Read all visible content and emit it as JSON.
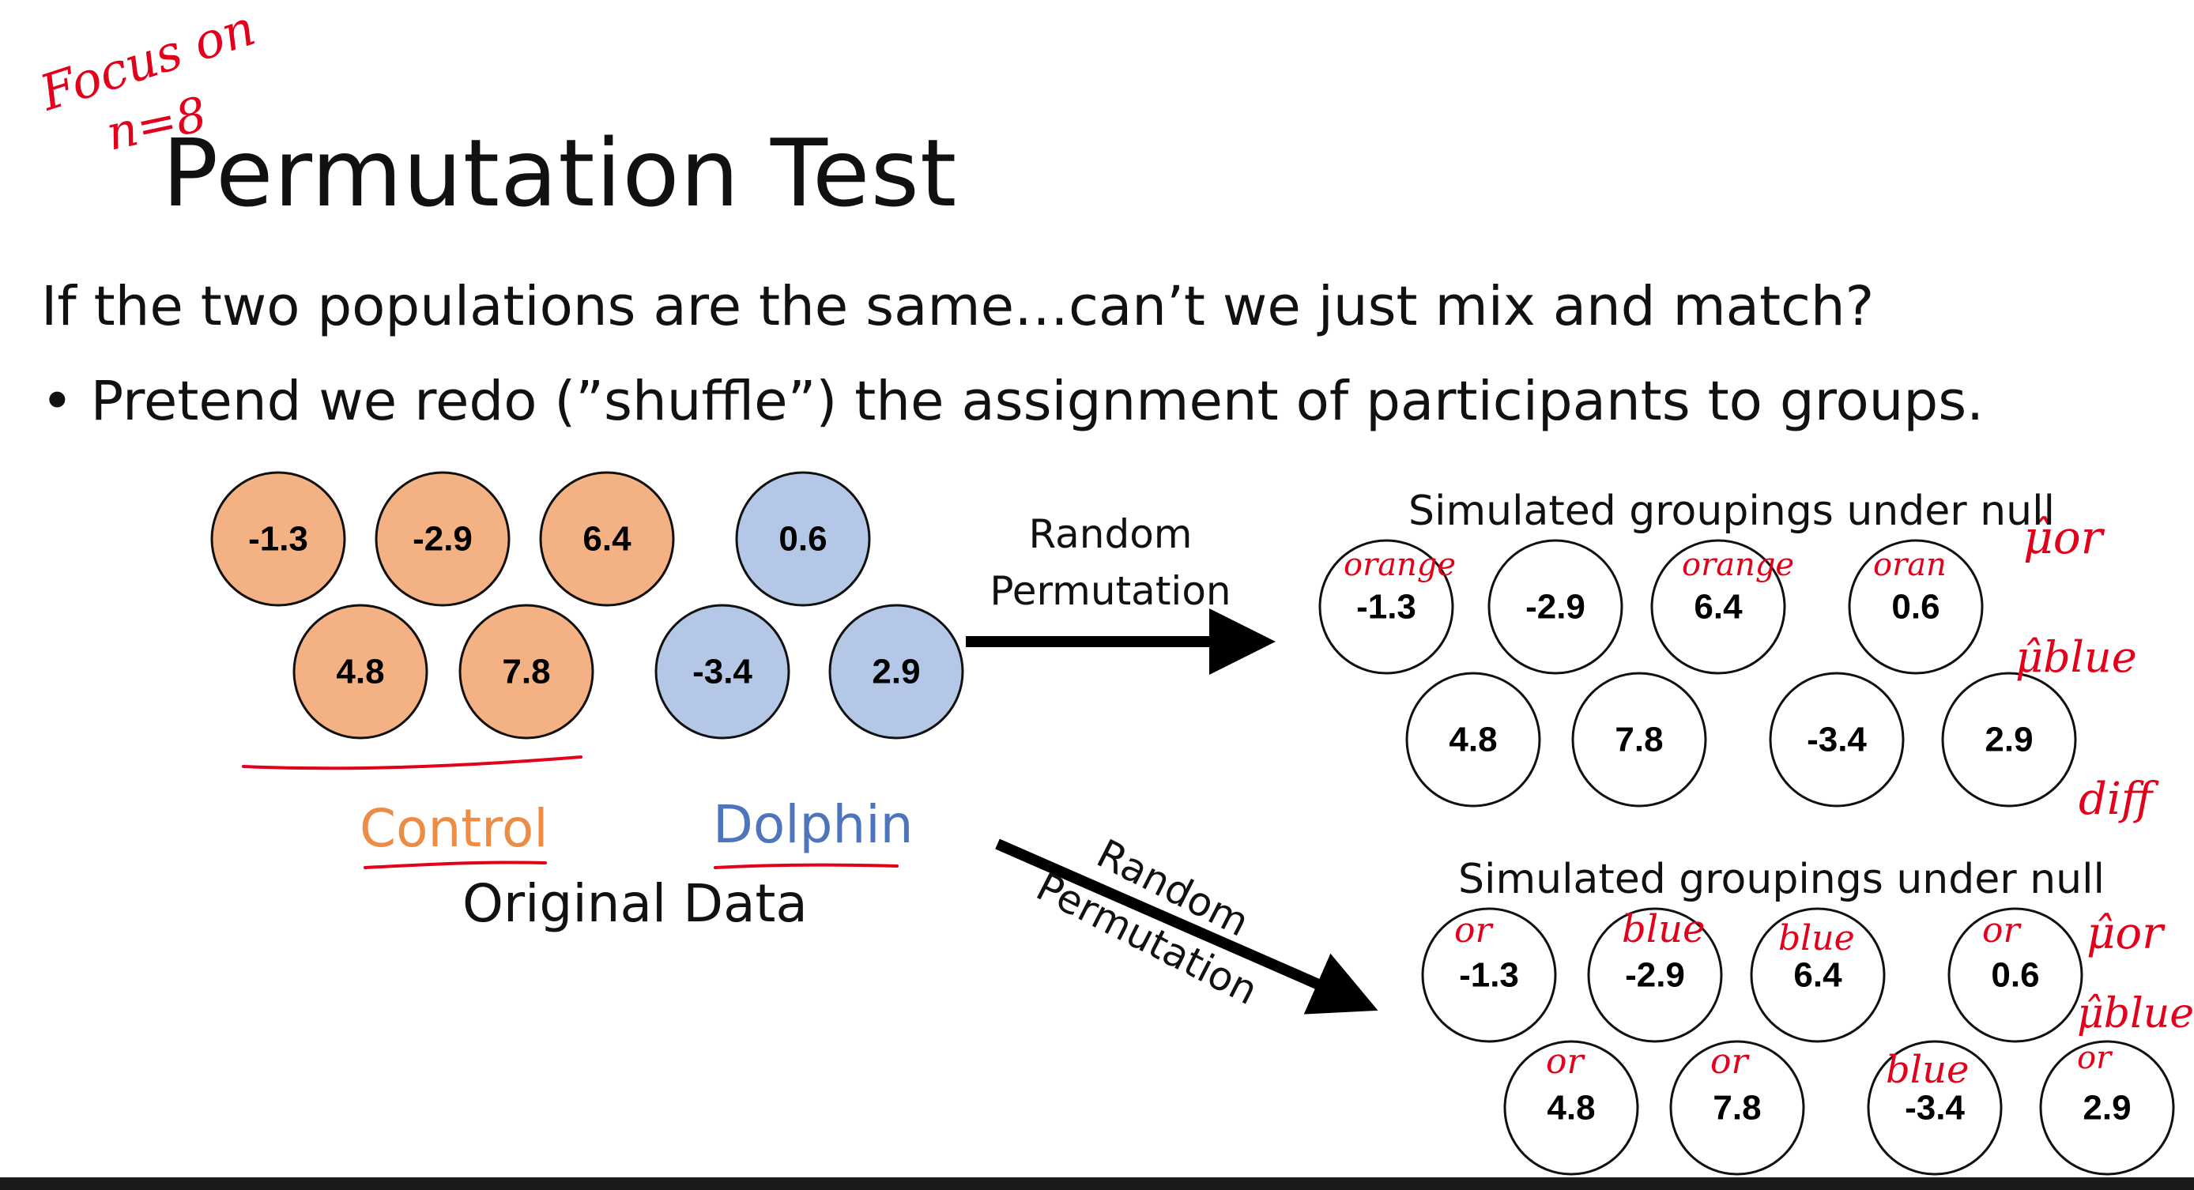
{
  "title": "Permutation Test",
  "headline": "If the two populations are the same…can’t we just mix and match?",
  "bullet": "• Pretend we redo (”shuffle”) the assignment of participants to groups.",
  "original": {
    "control_label": "Control",
    "dolphin_label": "Dolphin",
    "caption": "Original Data",
    "control_values": [
      "-1.3",
      "-2.9",
      "6.4",
      "4.8",
      "7.8"
    ],
    "dolphin_values": [
      "0.6",
      "-3.4",
      "2.9"
    ]
  },
  "arrows": {
    "top_label_line1": "Random",
    "top_label_line2": "Permutation",
    "bottom_label_line1": "Random",
    "bottom_label_line2": "Permutation"
  },
  "simulation_1": {
    "title": "Simulated groupings under null",
    "values": [
      "-1.3",
      "-2.9",
      "6.4",
      "0.6",
      "4.8",
      "7.8",
      "-3.4",
      "2.9"
    ],
    "annotations": [
      "orange",
      "",
      "orange",
      "oran",
      "",
      "",
      "",
      ""
    ]
  },
  "simulation_2": {
    "title": "Simulated groupings under null",
    "values": [
      "-1.3",
      "-2.9",
      "6.4",
      "0.6",
      "4.8",
      "7.8",
      "-3.4",
      "2.9"
    ],
    "annotations": [
      "or",
      "blue",
      "blue",
      "or",
      "or",
      "or",
      "blue",
      "or"
    ]
  },
  "handwriting": {
    "top_left": "Focus on",
    "top_left_2": "n=8",
    "mu_or": "μ̂or",
    "mu_blue": "μ̂blue",
    "diff": "diff"
  },
  "colors": {
    "control_fill": "#F4B183",
    "dolphin_fill": "#B4C7E7",
    "control_text": "#ED8C45",
    "dolphin_text": "#4E74BC",
    "ink": "#E3001B"
  }
}
